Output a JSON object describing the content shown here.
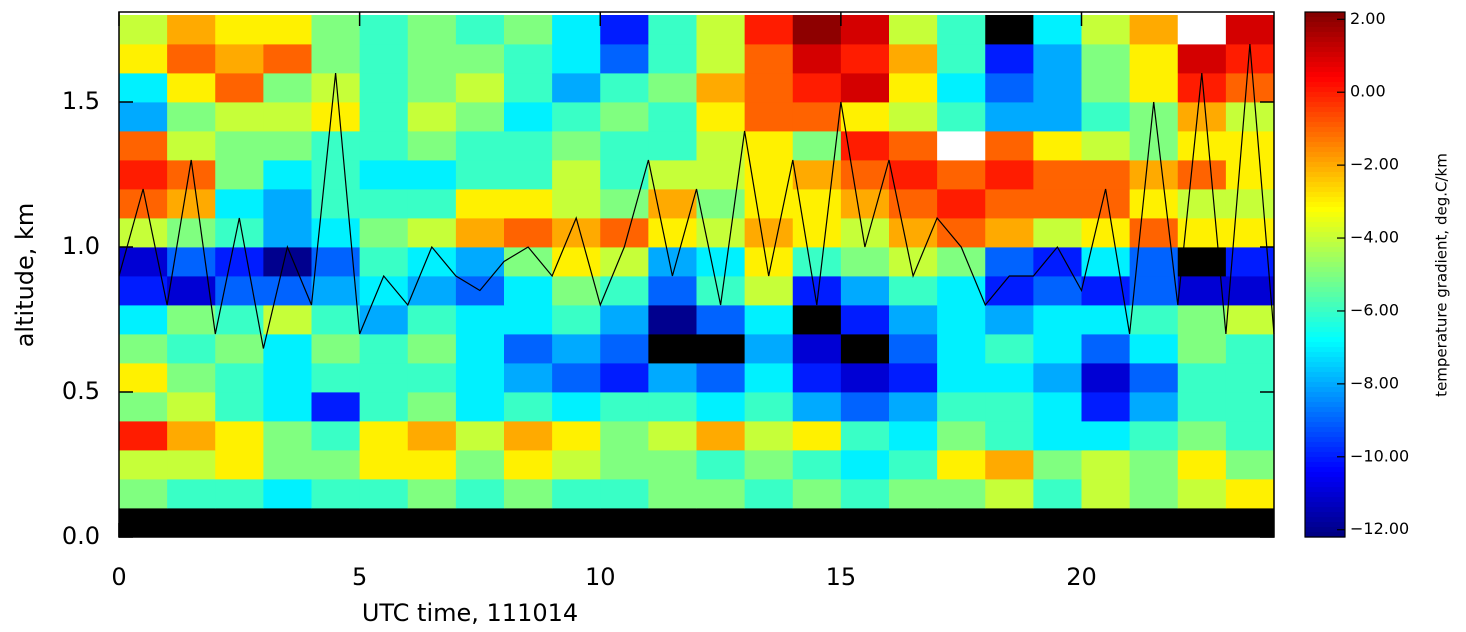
{
  "chart_data": {
    "type": "heatmap",
    "xlabel": "UTC time, 111014",
    "ylabel": "altitude, km",
    "xlim": [
      0,
      24
    ],
    "ylim": [
      0,
      1.8
    ],
    "xticks": [
      0,
      5,
      10,
      15,
      20
    ],
    "yticks": [
      {
        "value": 0,
        "label": "0.0"
      },
      0.5,
      {
        "value": 1,
        "label": "1.0"
      },
      1.5
    ],
    "colormap": "jet",
    "under_color": "#000000",
    "over_color": "#ffffff",
    "xbins": [
      0,
      1,
      2,
      3,
      4,
      5,
      6,
      7,
      8,
      9,
      10,
      11,
      12,
      13,
      14,
      15,
      16,
      17,
      18,
      19,
      20,
      21,
      22,
      23,
      24
    ],
    "ybins": [
      0,
      0.1,
      0.2,
      0.3,
      0.4,
      0.5,
      0.6,
      0.7,
      0.8,
      0.9,
      1.0,
      1.1,
      1.2,
      1.3,
      1.4,
      1.5,
      1.6,
      1.7,
      1.8
    ],
    "z": [
      [
        -13,
        -13,
        -13,
        -13,
        -13,
        -13,
        -13,
        -13,
        -13,
        -13,
        -13,
        -13,
        -13,
        -13,
        -13,
        -13,
        -13,
        -13,
        -13,
        -13,
        -13,
        -13,
        -13,
        -13
      ],
      [
        -5,
        -6,
        -6,
        -7,
        -6,
        -6,
        -5,
        -6,
        -5,
        -6,
        -6,
        -5,
        -5,
        -6,
        -5,
        -6,
        -5,
        -5,
        -4,
        -6,
        -4,
        -5,
        -4,
        -3
      ],
      [
        -4,
        -4,
        -3,
        -5,
        -5,
        -3,
        -3,
        -5,
        -3,
        -4,
        -5,
        -5,
        -6,
        -5,
        -6,
        -7,
        -6,
        -3,
        -2,
        -5,
        -4,
        -5,
        -3,
        -5
      ],
      [
        0,
        -2,
        -3,
        -5,
        -6,
        -3,
        -2,
        -4,
        -2,
        -3,
        -5,
        -4,
        -2,
        -4,
        -3,
        -6,
        -7,
        -5,
        -6,
        -7,
        -7,
        -6,
        -5,
        -6
      ],
      [
        -5,
        -4,
        -6,
        -7,
        -10,
        -6,
        -5,
        -7,
        -6,
        -7,
        -6,
        -6,
        -7,
        -6,
        -8,
        -9,
        -8,
        -6,
        -6,
        -7,
        -10,
        -8,
        -6,
        -6
      ],
      [
        -3,
        -5,
        -6,
        -7,
        -6,
        -6,
        -6,
        -7,
        -8,
        -9,
        -10,
        -8,
        -9,
        -7,
        -10,
        -11,
        -10,
        -7,
        -7,
        -8,
        -11,
        -9,
        -6,
        -6
      ],
      [
        -5,
        -6,
        -5,
        -7,
        -5,
        -6,
        -5,
        -7,
        -9,
        -8,
        -9,
        -13,
        -13,
        -8,
        -11,
        -13,
        -9,
        -7,
        -6,
        -7,
        -9,
        -7,
        -5,
        -6
      ],
      [
        -7,
        -5,
        -6,
        -4,
        -6,
        -8,
        -6,
        -7,
        -7,
        -6,
        -8,
        -12,
        -9,
        -7,
        -13,
        -10,
        -8,
        -7,
        -8,
        -7,
        -7,
        -6,
        -5,
        -4
      ],
      [
        -10,
        -11,
        -9,
        -9,
        -8,
        -7,
        -8,
        -9,
        -7,
        -5,
        -6,
        -9,
        -6,
        -4,
        -10,
        -8,
        -6,
        -7,
        -10,
        -9,
        -10,
        -9,
        -11,
        -11
      ],
      [
        -11,
        -9,
        -10,
        -12,
        -9,
        -6,
        -7,
        -8,
        -5,
        -3,
        -4,
        -8,
        -7,
        -3,
        -6,
        -5,
        -4,
        -5,
        -9,
        -10,
        -7,
        -9,
        -13,
        -10
      ],
      [
        -4,
        -5,
        -6,
        -8,
        -7,
        -5,
        -4,
        -2,
        -1,
        -2,
        -1,
        -3,
        -4,
        -2,
        -3,
        -4,
        -2,
        -1,
        -2,
        -4,
        -3,
        -1,
        -3,
        -3
      ],
      [
        -1,
        -2,
        -7,
        -8,
        -6,
        -6,
        -6,
        -3,
        -3,
        -4,
        -5,
        -2,
        -5,
        -3,
        -3,
        -2,
        -1,
        0,
        -1,
        -1,
        -1,
        -3,
        -4,
        -4
      ],
      [
        0,
        -1,
        -5,
        -7,
        -6,
        -7,
        -7,
        -6,
        -6,
        -4,
        -6,
        -4,
        -4,
        -3,
        -2,
        -1,
        0,
        -1,
        0,
        -1,
        -1,
        -2,
        -1,
        -3
      ],
      [
        -1,
        -4,
        -5,
        -5,
        -6,
        -6,
        -5,
        -6,
        -6,
        -5,
        -6,
        -6,
        -4,
        -3,
        -5,
        0,
        -1,
        3,
        -1,
        -3,
        -4,
        -5,
        -3,
        -3
      ],
      [
        -8,
        -5,
        -4,
        -4,
        -3,
        -6,
        -4,
        -5,
        -7,
        -6,
        -5,
        -6,
        -3,
        -1,
        -1,
        -3,
        -4,
        -6,
        -8,
        -8,
        -6,
        -5,
        -2,
        -4
      ],
      [
        -7,
        -3,
        -1,
        -5,
        -4,
        -6,
        -5,
        -4,
        -6,
        -8,
        -6,
        -5,
        -2,
        -1,
        0,
        1,
        -3,
        -7,
        -9,
        -8,
        -5,
        -3,
        0,
        -1
      ],
      [
        -3,
        -1,
        -2,
        -1,
        -5,
        -6,
        -5,
        -5,
        -6,
        -7,
        -9,
        -6,
        -4,
        -1,
        1,
        0,
        -2,
        -6,
        -10,
        -8,
        -5,
        -3,
        1,
        0
      ],
      [
        -4,
        -2,
        -3,
        -3,
        -5,
        -6,
        -5,
        -6,
        -5,
        -7,
        -10,
        -6,
        -4,
        0,
        2,
        1,
        -4,
        -6,
        -13,
        -7,
        -4,
        -2,
        3,
        1
      ]
    ],
    "line": {
      "color": "#000000",
      "x": [
        0,
        0.5,
        1,
        1.5,
        2,
        2.5,
        3,
        3.5,
        4,
        4.5,
        5,
        5.5,
        6,
        6.5,
        7,
        7.5,
        8,
        8.5,
        9,
        9.5,
        10,
        10.5,
        11,
        11.5,
        12,
        12.5,
        13,
        13.5,
        14,
        14.5,
        15,
        15.5,
        16,
        16.5,
        17,
        17.5,
        18,
        18.5,
        19,
        19.5,
        20,
        20.5,
        21,
        21.5,
        22,
        22.5,
        23,
        23.5,
        24
      ],
      "y": [
        0.9,
        1.2,
        0.8,
        1.3,
        0.7,
        1.1,
        0.65,
        1.0,
        0.8,
        1.6,
        0.7,
        0.9,
        0.8,
        1.0,
        0.9,
        0.85,
        0.95,
        1.0,
        0.9,
        1.1,
        0.8,
        1.0,
        1.3,
        0.9,
        1.2,
        0.8,
        1.4,
        0.9,
        1.3,
        0.8,
        1.5,
        1.0,
        1.3,
        0.9,
        1.1,
        1.0,
        0.8,
        0.9,
        0.9,
        1.0,
        0.85,
        1.2,
        0.7,
        1.5,
        0.8,
        1.6,
        0.7,
        1.7,
        0.7
      ]
    },
    "colorbar": {
      "label": "temperature gradient,  deg.C/km",
      "lim": [
        -12.2,
        2.2
      ],
      "ticks": [
        {
          "value": 2,
          "label": "2.00"
        },
        {
          "value": 0,
          "label": "0.00"
        },
        {
          "value": -2,
          "label": "−2.00"
        },
        {
          "value": -4,
          "label": "−4.00"
        },
        {
          "value": -6,
          "label": "−6.00"
        },
        {
          "value": -8,
          "label": "−8.00"
        },
        {
          "value": -10,
          "label": "−10.00"
        },
        {
          "value": -12,
          "label": "−12.00"
        }
      ]
    }
  }
}
